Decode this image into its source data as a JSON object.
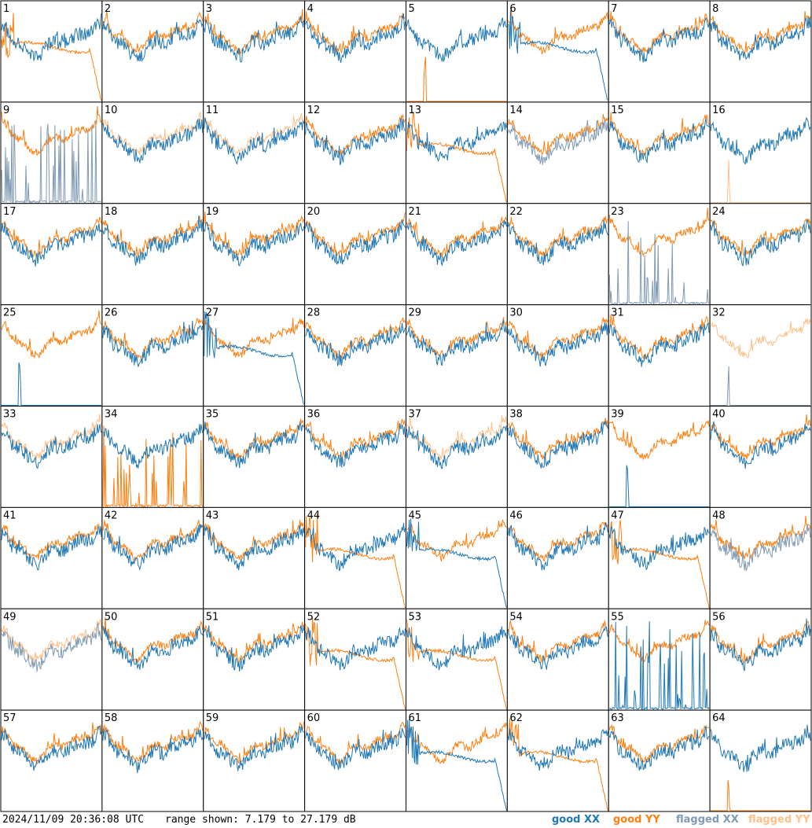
{
  "timestamp": "2024/11/09 20:36:08 UTC",
  "range_text": "range shown: 7.179 to 27.179 dB",
  "legend": [
    {
      "label": "good XX",
      "color": "#1f77b4"
    },
    {
      "label": "good YY",
      "color": "#ff7f0e"
    },
    {
      "label": "flagged XX",
      "color": "#7f9ab4"
    },
    {
      "label": "flagged YY",
      "color": "#ffbf87"
    }
  ],
  "chart_data": {
    "type": "line",
    "title": "",
    "ylim_db": [
      7.179,
      27.179
    ],
    "layout": "8x8 grid of per-antenna spectra",
    "tiles": [
      {
        "id": "1",
        "xx": "good",
        "yy": "drop"
      },
      {
        "id": "2",
        "xx": "good",
        "yy": "good"
      },
      {
        "id": "3",
        "xx": "good",
        "yy": "good"
      },
      {
        "id": "4",
        "xx": "good",
        "yy": "good"
      },
      {
        "id": "5",
        "xx": "good",
        "yy": "dead"
      },
      {
        "id": "6",
        "xx": "drop",
        "yy": "good"
      },
      {
        "id": "7",
        "xx": "good",
        "yy": "good"
      },
      {
        "id": "8",
        "xx": "good",
        "yy": "good"
      },
      {
        "id": "9",
        "xx": "flagged-spiky",
        "yy": "good"
      },
      {
        "id": "10",
        "xx": "good",
        "yy": "flagged"
      },
      {
        "id": "11",
        "xx": "good",
        "yy": "flagged"
      },
      {
        "id": "12",
        "xx": "good",
        "yy": "good"
      },
      {
        "id": "13",
        "xx": "good",
        "yy": "drop"
      },
      {
        "id": "14",
        "xx": "flagged",
        "yy": "good"
      },
      {
        "id": "15",
        "xx": "good",
        "yy": "good"
      },
      {
        "id": "16",
        "xx": "good",
        "yy": "flagged-dead"
      },
      {
        "id": "17",
        "xx": "good",
        "yy": "good"
      },
      {
        "id": "18",
        "xx": "good",
        "yy": "good"
      },
      {
        "id": "19",
        "xx": "good",
        "yy": "good"
      },
      {
        "id": "20",
        "xx": "good",
        "yy": "good"
      },
      {
        "id": "21",
        "xx": "good",
        "yy": "good"
      },
      {
        "id": "22",
        "xx": "good",
        "yy": "good"
      },
      {
        "id": "23",
        "xx": "flagged-spiky",
        "yy": "good"
      },
      {
        "id": "24",
        "xx": "good",
        "yy": "good"
      },
      {
        "id": "25",
        "xx": "dead",
        "yy": "good"
      },
      {
        "id": "26",
        "xx": "good",
        "yy": "good"
      },
      {
        "id": "27",
        "xx": "drop",
        "yy": "good"
      },
      {
        "id": "28",
        "xx": "good",
        "yy": "good"
      },
      {
        "id": "29",
        "xx": "good",
        "yy": "good"
      },
      {
        "id": "30",
        "xx": "good",
        "yy": "good"
      },
      {
        "id": "31",
        "xx": "good",
        "yy": "good"
      },
      {
        "id": "32",
        "xx": "flagged-dead",
        "yy": "flagged"
      },
      {
        "id": "33",
        "xx": "good",
        "yy": "flagged"
      },
      {
        "id": "34",
        "xx": "good",
        "yy": "spiky"
      },
      {
        "id": "35",
        "xx": "good",
        "yy": "good"
      },
      {
        "id": "36",
        "xx": "good",
        "yy": "good"
      },
      {
        "id": "37",
        "xx": "good",
        "yy": "flagged"
      },
      {
        "id": "38",
        "xx": "good",
        "yy": "good"
      },
      {
        "id": "39",
        "xx": "dead",
        "yy": "good"
      },
      {
        "id": "40",
        "xx": "good",
        "yy": "good"
      },
      {
        "id": "41",
        "xx": "good",
        "yy": "good"
      },
      {
        "id": "42",
        "xx": "good",
        "yy": "good"
      },
      {
        "id": "43",
        "xx": "good",
        "yy": "good"
      },
      {
        "id": "44",
        "xx": "good",
        "yy": "drop"
      },
      {
        "id": "45",
        "xx": "drop",
        "yy": "good"
      },
      {
        "id": "46",
        "xx": "good",
        "yy": "good"
      },
      {
        "id": "47",
        "xx": "good",
        "yy": "drop"
      },
      {
        "id": "48",
        "xx": "flagged",
        "yy": "good"
      },
      {
        "id": "49",
        "xx": "flagged",
        "yy": "flagged"
      },
      {
        "id": "50",
        "xx": "good",
        "yy": "good"
      },
      {
        "id": "51",
        "xx": "good",
        "yy": "good"
      },
      {
        "id": "52",
        "xx": "good",
        "yy": "drop"
      },
      {
        "id": "53",
        "xx": "good",
        "yy": "drop"
      },
      {
        "id": "54",
        "xx": "good",
        "yy": "good"
      },
      {
        "id": "55",
        "xx": "spiky",
        "yy": "good"
      },
      {
        "id": "56",
        "xx": "good",
        "yy": "good"
      },
      {
        "id": "57",
        "xx": "good",
        "yy": "good"
      },
      {
        "id": "58",
        "xx": "good",
        "yy": "good"
      },
      {
        "id": "59",
        "xx": "good",
        "yy": "good"
      },
      {
        "id": "60",
        "xx": "good",
        "yy": "good"
      },
      {
        "id": "61",
        "xx": "drop",
        "yy": "good"
      },
      {
        "id": "62",
        "xx": "good",
        "yy": "drop"
      },
      {
        "id": "63",
        "xx": "good",
        "yy": "good"
      },
      {
        "id": "64",
        "xx": "good",
        "yy": "dead"
      }
    ]
  }
}
